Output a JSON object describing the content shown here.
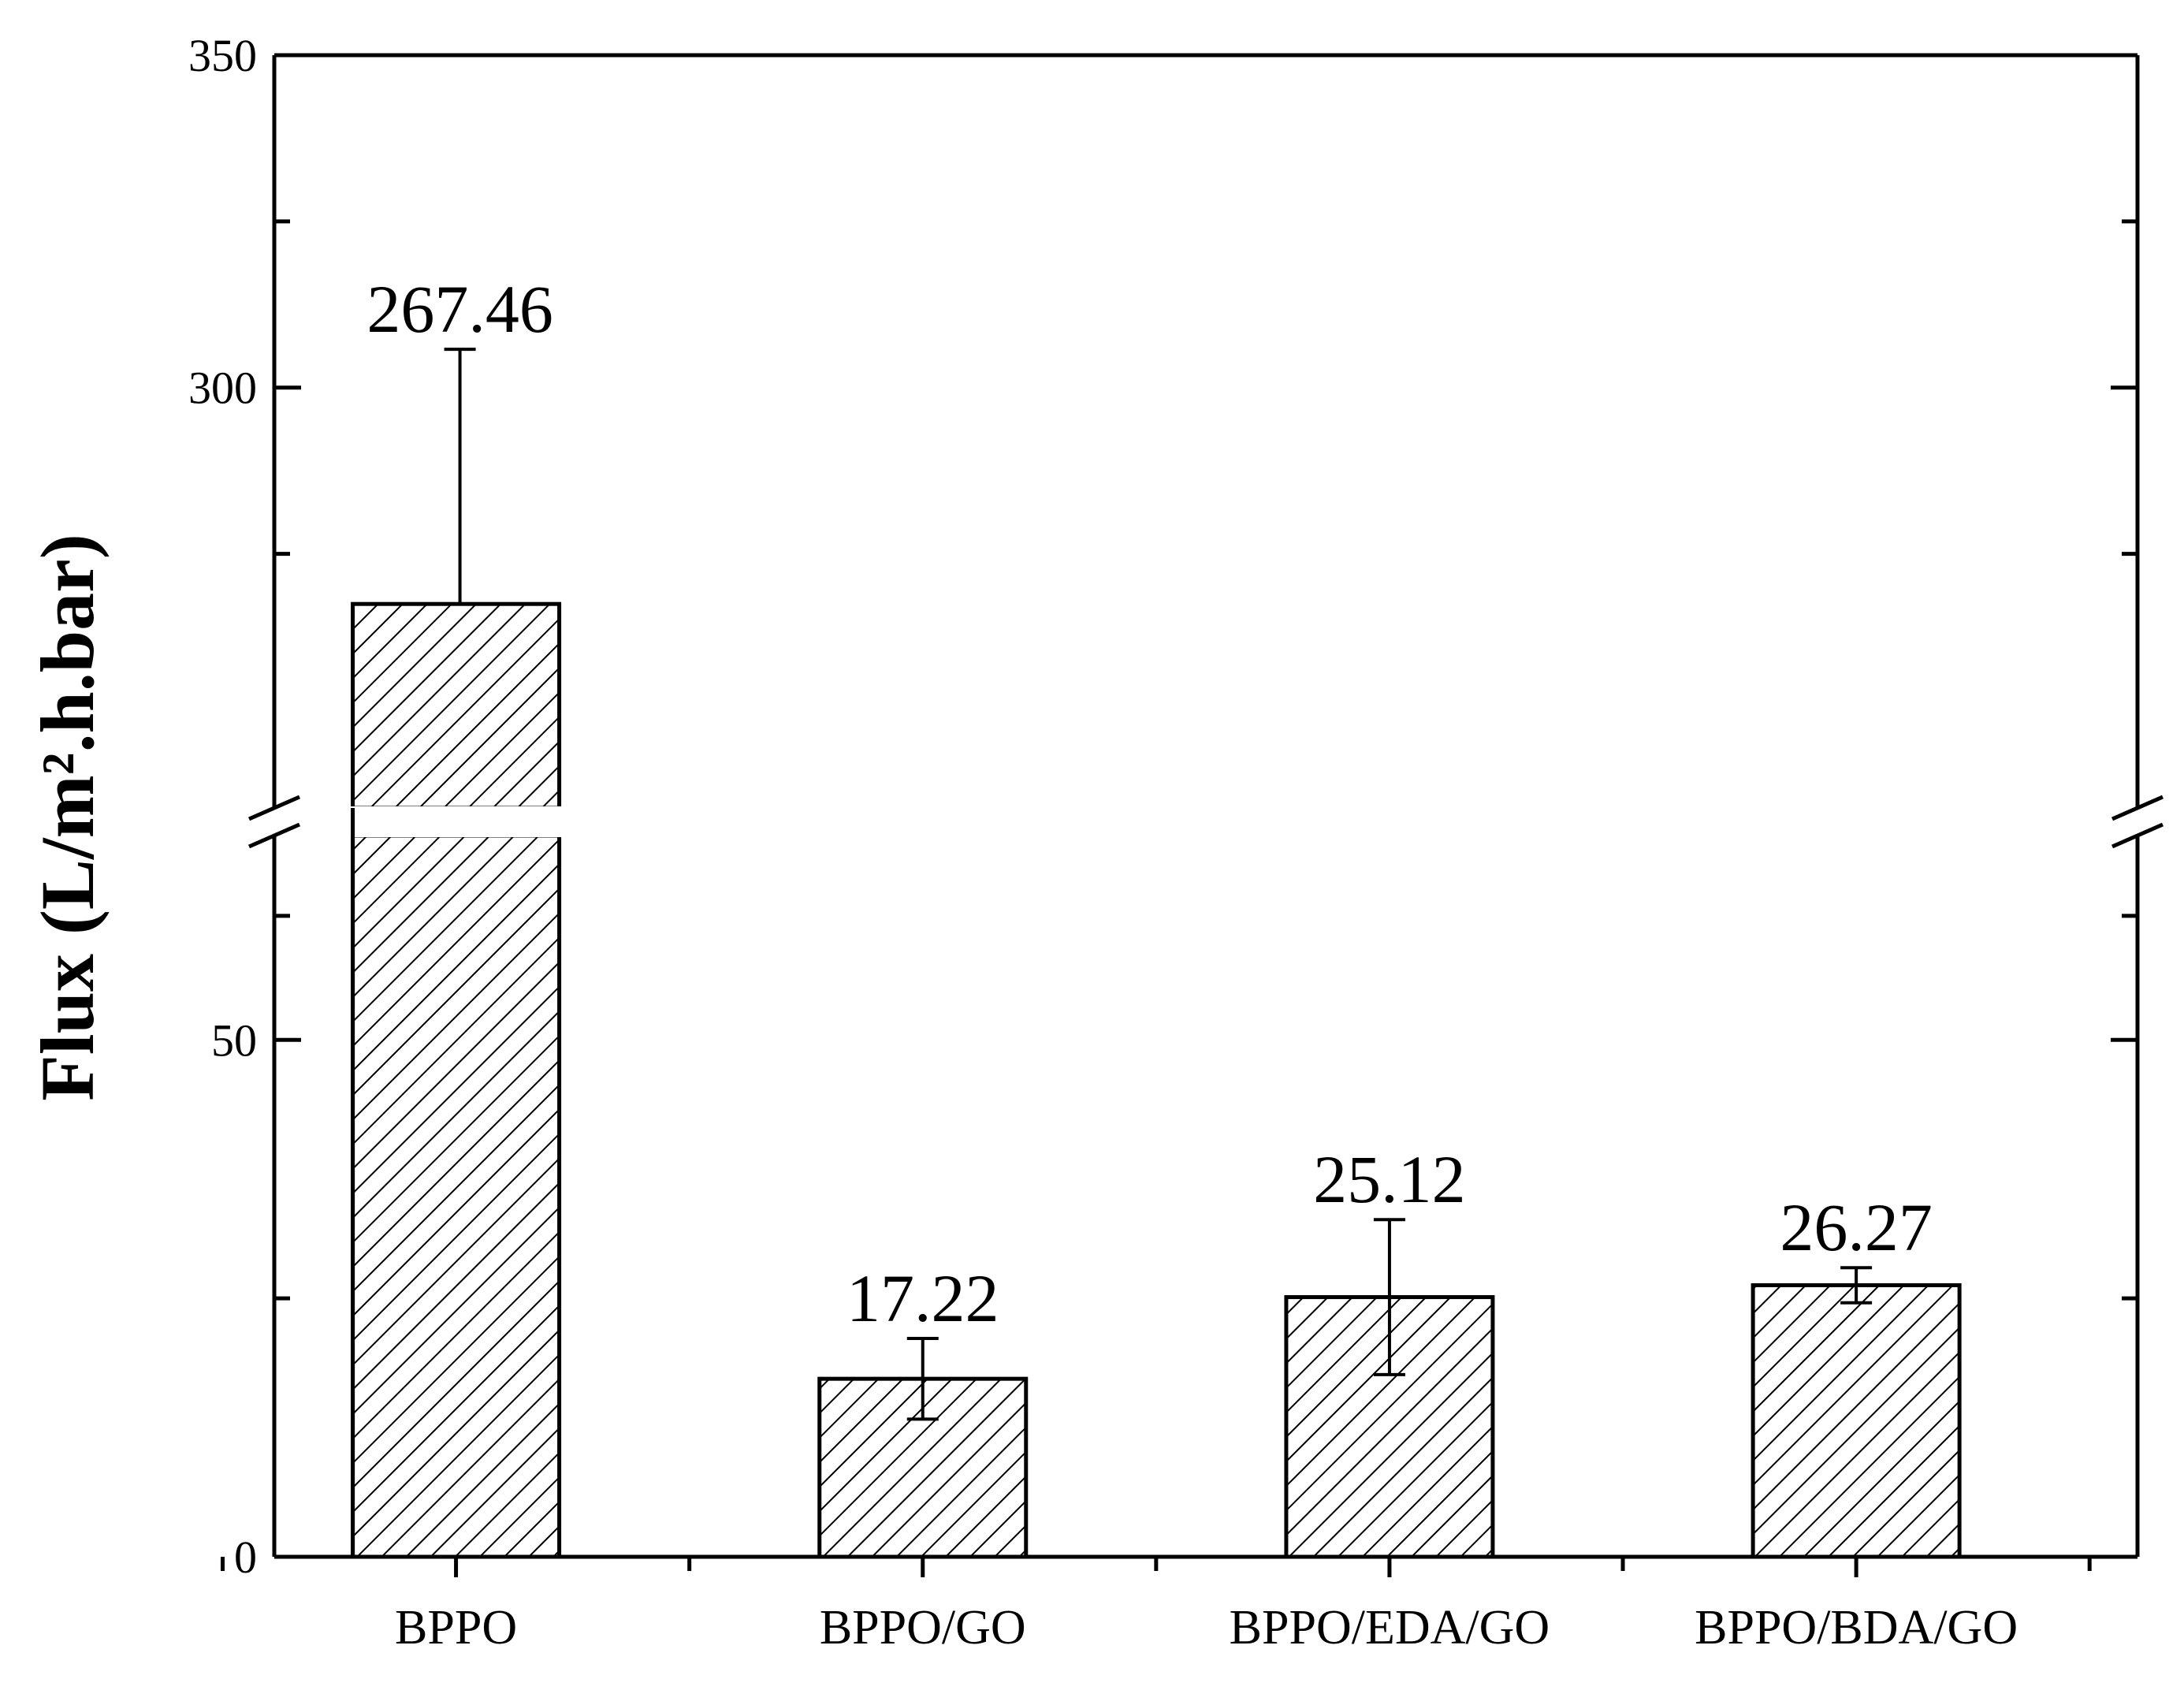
{
  "chart_data": {
    "type": "bar",
    "categories": [
      "BPPO",
      "BPPO/GO",
      "BPPO/EDA/GO",
      "BPPO/BDA/GO"
    ],
    "values": [
      267.46,
      17.22,
      25.12,
      26.27
    ],
    "errors": [
      38.3,
      3.9,
      7.5,
      1.7
    ],
    "data_labels": [
      "267.46",
      "17.22",
      "25.12",
      "26.27"
    ],
    "ylabel": "Flux (L/m².h.bar)",
    "xlabel": "",
    "title": "",
    "axis_break": {
      "lower_segment": [
        0,
        70
      ],
      "upper_segment": [
        235,
        350
      ]
    },
    "y_ticks": [
      "0",
      "50",
      "300",
      "350"
    ],
    "y_tick_values": [
      0,
      50,
      300,
      350
    ],
    "bar_fill": "diagonal-hatch",
    "bar_color": "#000000",
    "grid": false,
    "legend": "none"
  }
}
